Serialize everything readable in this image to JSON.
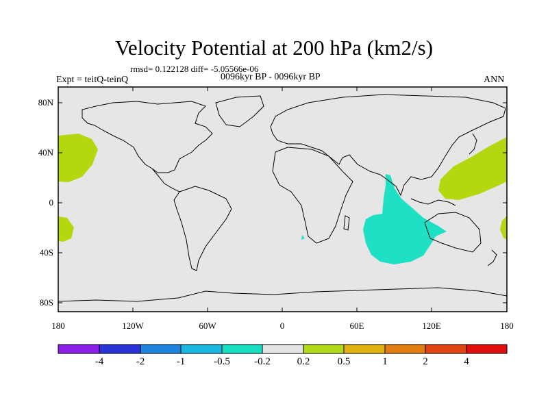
{
  "title": "Velocity Potential at 200 hPa (km2/s)",
  "stats": "rmsd= 0.122128 diff= -5.05566e-06",
  "expt": "Expt = teitQ-teinQ",
  "period": "0096kyr BP - 0096kyr BP",
  "season": "ANN",
  "lat_labels": [
    "80N",
    "40N",
    "0",
    "40S",
    "80S"
  ],
  "lon_labels": [
    "180",
    "120W",
    "60W",
    "0",
    "60E",
    "120E",
    "180"
  ],
  "colorbar": {
    "labels": [
      "-4",
      "-2",
      "-1",
      "-0.5",
      "-0.2",
      "0.2",
      "0.5",
      "1",
      "2",
      "4"
    ],
    "colors": [
      "#8a1ee6",
      "#2a33d8",
      "#1e85de",
      "#18b6e0",
      "#18ddc0",
      "#e4e4e4",
      "#b2d81a",
      "#e0b210",
      "#e07c10",
      "#e04410",
      "#e00e0e"
    ]
  },
  "colors": {
    "positive": "#b4d80f",
    "negative": "#1ee0c4",
    "background": "#e6e6e6"
  }
}
